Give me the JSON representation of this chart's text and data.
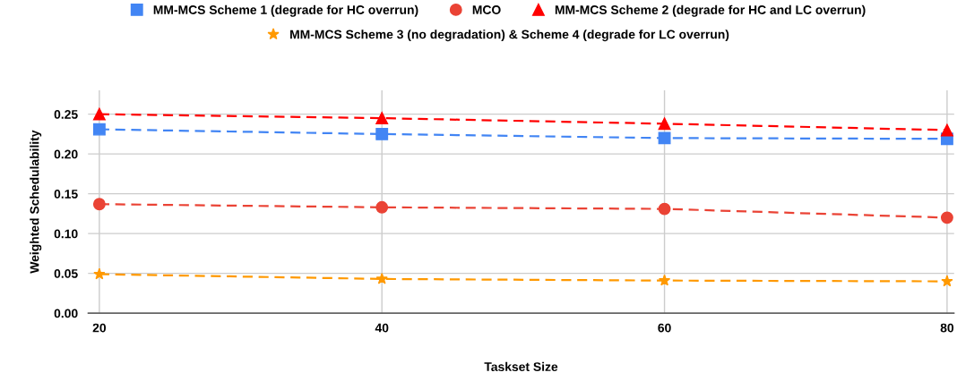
{
  "chart_data": {
    "type": "line",
    "xlabel": "Taskset Size",
    "ylabel": "Weighted Schedulability",
    "x": [
      20,
      40,
      60,
      80
    ],
    "series": [
      {
        "name": "MM-MCS Scheme 1 (degrade for HC overrun)",
        "color": "#4285f4",
        "marker": "square",
        "values": [
          0.231,
          0.225,
          0.22,
          0.219
        ]
      },
      {
        "name": "MCO",
        "color": "#ea4335",
        "marker": "circle",
        "values": [
          0.137,
          0.133,
          0.131,
          0.12
        ]
      },
      {
        "name": "MM-MCS Scheme 2 (degrade for HC and LC overrun)",
        "color": "#ff0000",
        "marker": "triangle",
        "values": [
          0.25,
          0.245,
          0.238,
          0.23
        ]
      },
      {
        "name": "MM-MCS Scheme 3 (no degradation) & Scheme 4 (degrade for LC overrun)",
        "color": "#ff9900",
        "marker": "star",
        "values": [
          0.049,
          0.043,
          0.041,
          0.04
        ]
      }
    ],
    "xlim": [
      19.2,
      80.5
    ],
    "xticks": [
      20,
      40,
      60,
      80
    ],
    "ylim": [
      0,
      0.28
    ],
    "yticks": [
      {
        "value": 0,
        "label": "0.00"
      },
      {
        "value": 0.05,
        "label": "0.05"
      },
      {
        "value": 0.1,
        "label": "0.10"
      },
      {
        "value": 0.15,
        "label": "0.15"
      },
      {
        "value": 0.2,
        "label": "0.20"
      },
      {
        "value": 0.25,
        "label": "0.25"
      }
    ],
    "grid": true,
    "legend": "top",
    "line_style": "dashed"
  }
}
